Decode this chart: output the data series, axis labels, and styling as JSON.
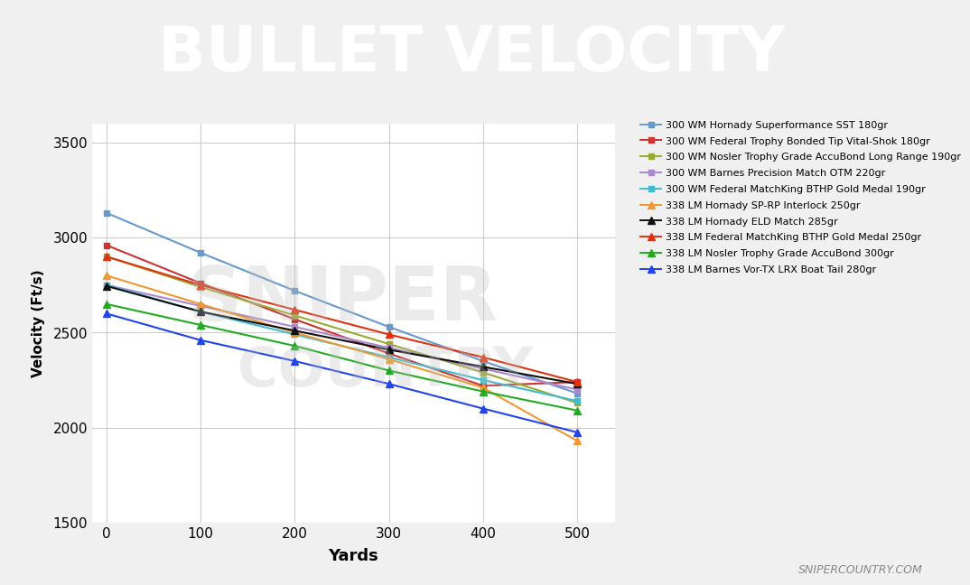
{
  "title": "BULLET VELOCITY",
  "xlabel": "Yards",
  "ylabel": "Velocity (Ft/s)",
  "title_bg_color": "#6b6b6b",
  "title_text_color": "#ffffff",
  "accent_color": "#e8736a",
  "plot_bg_color": "#ffffff",
  "outer_bg_color": "#f0f0f0",
  "ylim": [
    1500,
    3600
  ],
  "xlim": [
    -15,
    540
  ],
  "yticks": [
    1500,
    2000,
    2500,
    3000,
    3500
  ],
  "xticks": [
    0,
    100,
    200,
    300,
    400,
    500
  ],
  "watermark_line1": "SNIPER",
  "watermark_line2": "COUNTRY",
  "site_watermark": "SNIPERCOUNTRY.COM",
  "yards": [
    0,
    100,
    200,
    300,
    400,
    500
  ],
  "series": [
    {
      "label": "300 WM Hornady Superformance SST 180gr",
      "color": "#6699cc",
      "marker": "s",
      "markersize": 5,
      "values": [
        3130,
        2920,
        2720,
        2530,
        2350,
        2180
      ]
    },
    {
      "label": "300 WM Federal Trophy Bonded Tip Vital-Shok 180gr",
      "color": "#cc3333",
      "marker": "s",
      "markersize": 5,
      "values": [
        2960,
        2760,
        2570,
        2390,
        2220,
        2240
      ]
    },
    {
      "label": "300 WM Nosler Trophy Grade AccuBond Long Range 190gr",
      "color": "#99aa33",
      "marker": "s",
      "markersize": 5,
      "values": [
        2900,
        2740,
        2590,
        2440,
        2290,
        2130
      ]
    },
    {
      "label": "300 WM Barnes Precision Match OTM 220gr",
      "color": "#aa88cc",
      "marker": "s",
      "markersize": 5,
      "values": [
        2750,
        2640,
        2530,
        2420,
        2310,
        2200
      ]
    },
    {
      "label": "300 WM Federal MatchKing BTHP Gold Medal 190gr",
      "color": "#44bbcc",
      "marker": "s",
      "markersize": 5,
      "values": [
        2750,
        2610,
        2490,
        2370,
        2250,
        2140
      ]
    },
    {
      "label": "338 LM Hornady SP-RP Interlock 250gr",
      "color": "#ee9933",
      "marker": "^",
      "markersize": 6,
      "values": [
        2800,
        2650,
        2500,
        2360,
        2210,
        1930
      ]
    },
    {
      "label": "338 LM Hornady ELD Match 285gr",
      "color": "#111111",
      "marker": "^",
      "markersize": 6,
      "values": [
        2745,
        2610,
        2510,
        2410,
        2320,
        2230
      ]
    },
    {
      "label": "338 LM Federal MatchKing BTHP Gold Medal 250gr",
      "color": "#dd3311",
      "marker": "^",
      "markersize": 6,
      "values": [
        2900,
        2750,
        2620,
        2490,
        2370,
        2240
      ]
    },
    {
      "label": "338 LM Nosler Trophy Grade AccuBond 300gr",
      "color": "#22aa22",
      "marker": "^",
      "markersize": 6,
      "values": [
        2650,
        2540,
        2430,
        2300,
        2190,
        2090
      ]
    },
    {
      "label": "338 LM Barnes Vor-TX LRX Boat Tail 280gr",
      "color": "#2244ee",
      "marker": "^",
      "markersize": 6,
      "values": [
        2600,
        2460,
        2350,
        2230,
        2100,
        1975
      ]
    }
  ]
}
